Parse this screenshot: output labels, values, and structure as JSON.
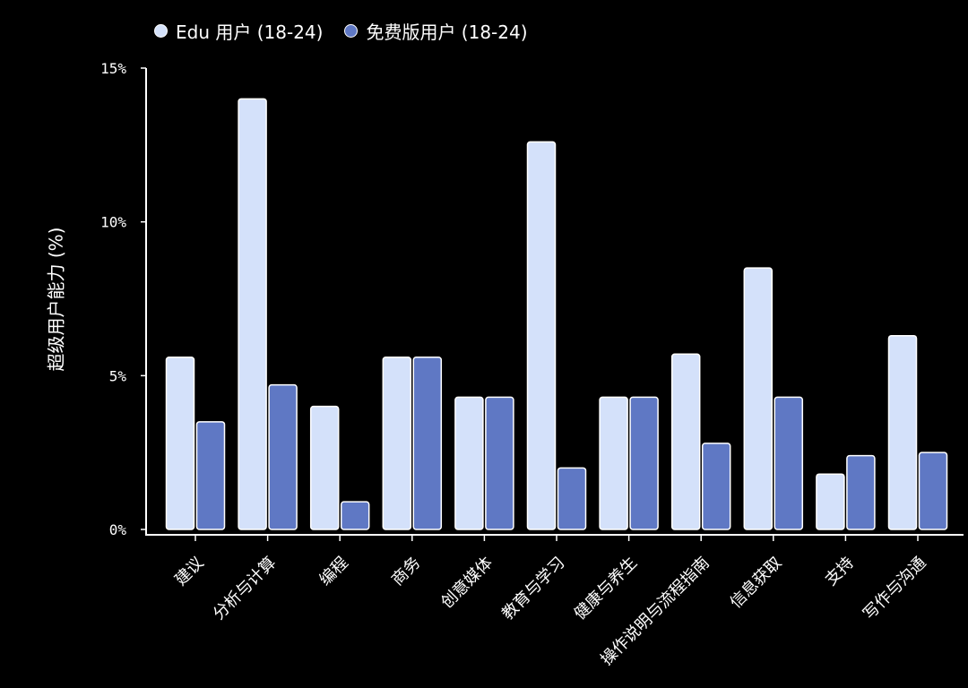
{
  "colors": {
    "background": "#000000",
    "edu": "#D4E1FA",
    "free": "#5F78C4",
    "axis": "#FFFFFF"
  },
  "chart_data": {
    "type": "bar",
    "title": "",
    "xlabel": "",
    "ylabel": "超级用户能力 (%)",
    "ylim": [
      0,
      15
    ],
    "yticks": [
      0,
      5,
      10,
      15
    ],
    "ytick_labels": [
      "0%",
      "5%",
      "10%",
      "15%"
    ],
    "grid": false,
    "legend_position": "top-left",
    "categories": [
      "建议",
      "分析与计算",
      "编程",
      "商务",
      "创意媒体",
      "教育与学习",
      "健康与养生",
      "操作说明与流程指南",
      "信息获取",
      "支持",
      "写作与沟通"
    ],
    "series": [
      {
        "name": "Edu 用户 (18-24)",
        "color": "#D4E1FA",
        "values": [
          5.6,
          14.0,
          4.0,
          5.6,
          4.3,
          12.6,
          4.3,
          5.7,
          8.5,
          1.8,
          6.3
        ]
      },
      {
        "name": "免费版用户 (18-24)",
        "color": "#5F78C4",
        "values": [
          3.5,
          4.7,
          0.9,
          5.6,
          4.3,
          2.0,
          4.3,
          2.8,
          4.3,
          2.4,
          2.5
        ]
      }
    ]
  }
}
